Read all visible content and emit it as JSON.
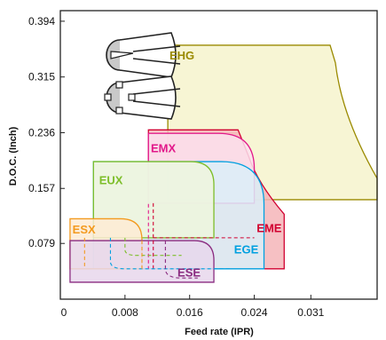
{
  "chart_data": {
    "type": "area",
    "title": "",
    "xlabel": "Feed rate (IPR)",
    "ylabel": "D.O.C. (Inch)",
    "origin_label": "0",
    "xlim": [
      0,
      0.0392
    ],
    "ylim": [
      0,
      0.409
    ],
    "x_ticks": [
      {
        "value": 0.008,
        "label": "0.008"
      },
      {
        "value": 0.016,
        "label": "0.016"
      },
      {
        "value": 0.024,
        "label": "0.024"
      },
      {
        "value": 0.031,
        "label": "0.031"
      }
    ],
    "y_ticks": [
      {
        "value": 0.079,
        "label": "0.079"
      },
      {
        "value": 0.157,
        "label": "0.157"
      },
      {
        "value": 0.236,
        "label": "0.236"
      },
      {
        "value": 0.315,
        "label": "0.315"
      },
      {
        "value": 0.394,
        "label": "0.394"
      }
    ],
    "grid": false,
    "series": [
      {
        "name": "EHG",
        "color": "#9a8a00",
        "fill": "#f6f3cc",
        "x_range": [
          0.0133,
          0.0392
        ],
        "y_range": [
          0.141,
          0.36
        ]
      },
      {
        "name": "EME",
        "color": "#d10030",
        "fill": "#f4b5b9",
        "x_range": [
          0.0109,
          0.0277
        ],
        "y_range": [
          0.043,
          0.24
        ]
      },
      {
        "name": "EMX",
        "color": "#e2188a",
        "fill": "#fbe0ef",
        "x_range": [
          0.0109,
          0.024
        ],
        "y_range": [
          0.136,
          0.235
        ]
      },
      {
        "name": "EGE",
        "color": "#00a0e0",
        "fill": "#daeef8",
        "x_range": [
          0.0041,
          0.0252
        ],
        "y_range": [
          0.043,
          0.195
        ]
      },
      {
        "name": "EUX",
        "color": "#7dbe2a",
        "fill": "#eef6dd",
        "x_range": [
          0.0041,
          0.019
        ],
        "y_range": [
          0.087,
          0.195
        ]
      },
      {
        "name": "ESX",
        "color": "#f39a1f",
        "fill": "#fdebd4",
        "x_range": [
          0.0012,
          0.0101
        ],
        "y_range": [
          0.043,
          0.114
        ]
      },
      {
        "name": "ESE",
        "color": "#8a2b80",
        "fill": "#e7d7ec",
        "x_range": [
          0.0012,
          0.019
        ],
        "y_range": [
          0.024,
          0.083
        ]
      }
    ]
  }
}
